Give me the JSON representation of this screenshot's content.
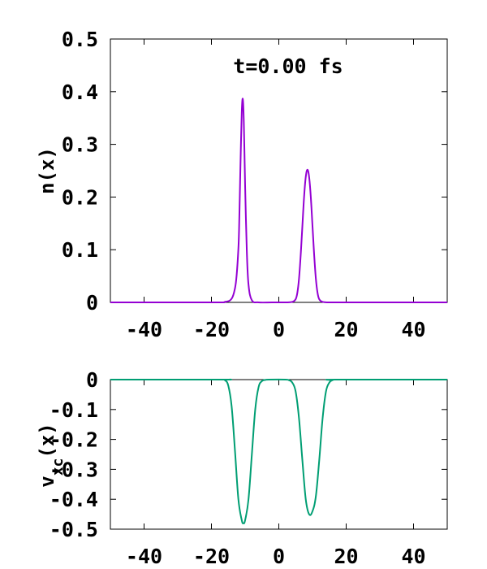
{
  "chart_data": [
    {
      "type": "line",
      "ylabel": "n(x)",
      "annotation": "t=0.00 fs",
      "xlim": [
        -50,
        50
      ],
      "ylim": [
        0,
        0.5
      ],
      "xticks": [
        -40,
        -20,
        0,
        20,
        40
      ],
      "xtick_labels": [
        "-40",
        "-20",
        "0",
        "20",
        "40"
      ],
      "yticks": [
        0,
        0.1,
        0.2,
        0.3,
        0.4,
        0.5
      ],
      "ytick_labels": [
        "0",
        "0.1",
        "0.2",
        "0.3",
        "0.4",
        "0.5"
      ],
      "grid": false,
      "series": [
        {
          "color": "#9400d3",
          "x": [
            -50,
            -20,
            -16,
            -14,
            -13,
            -12.5,
            -12,
            -11.8,
            -11.6,
            -11.4,
            -11.2,
            -11,
            -10.8,
            -10.6,
            -10.4,
            -10.2,
            -10,
            -9.5,
            -9,
            -8,
            -6,
            -2,
            2,
            4,
            5,
            5.5,
            6,
            6.5,
            7,
            7.5,
            8,
            8.5,
            9,
            9.5,
            10,
            10.5,
            11,
            11.5,
            12,
            13,
            15,
            20,
            50
          ],
          "y": [
            0,
            0,
            0.001,
            0.007,
            0.027,
            0.053,
            0.102,
            0.138,
            0.196,
            0.256,
            0.311,
            0.36,
            0.385,
            0.38,
            0.345,
            0.286,
            0.221,
            0.098,
            0.034,
            0.004,
            0,
            0,
            0,
            0.001,
            0.006,
            0.018,
            0.045,
            0.09,
            0.145,
            0.2,
            0.238,
            0.252,
            0.238,
            0.2,
            0.145,
            0.09,
            0.045,
            0.018,
            0.006,
            0.001,
            0,
            0,
            0
          ]
        }
      ]
    },
    {
      "type": "line",
      "ylabel": "v_xc(x)",
      "xlim": [
        -50,
        50
      ],
      "ylim": [
        -0.5,
        0
      ],
      "xticks": [
        -40,
        -20,
        0,
        20,
        40
      ],
      "xtick_labels": [
        "-40",
        "-20",
        "0",
        "20",
        "40"
      ],
      "yticks": [
        0,
        -0.1,
        -0.2,
        -0.3,
        -0.4,
        -0.5
      ],
      "ytick_labels": [
        "0",
        "-0.1",
        "-0.2",
        "-0.3",
        "-0.4",
        "-0.5"
      ],
      "grid": false,
      "series": [
        {
          "color": "#009e73",
          "x": [
            -50,
            -17,
            -16,
            -15,
            -14,
            -13,
            -12,
            -11,
            -10.5,
            -10,
            -9,
            -8,
            -7,
            -6,
            -5,
            -4,
            -3,
            2,
            3,
            4,
            5,
            6,
            7,
            8,
            9,
            10,
            11,
            12,
            13,
            14,
            15,
            16,
            17,
            50
          ],
          "y": [
            0,
            0,
            -0.002,
            -0.02,
            -0.09,
            -0.24,
            -0.4,
            -0.47,
            -0.48,
            -0.47,
            -0.4,
            -0.25,
            -0.1,
            -0.025,
            -0.005,
            -0.001,
            0,
            0,
            -0.002,
            -0.01,
            -0.04,
            -0.13,
            -0.27,
            -0.4,
            -0.45,
            -0.44,
            -0.39,
            -0.27,
            -0.13,
            -0.04,
            -0.01,
            -0.002,
            0,
            0
          ]
        }
      ]
    }
  ]
}
